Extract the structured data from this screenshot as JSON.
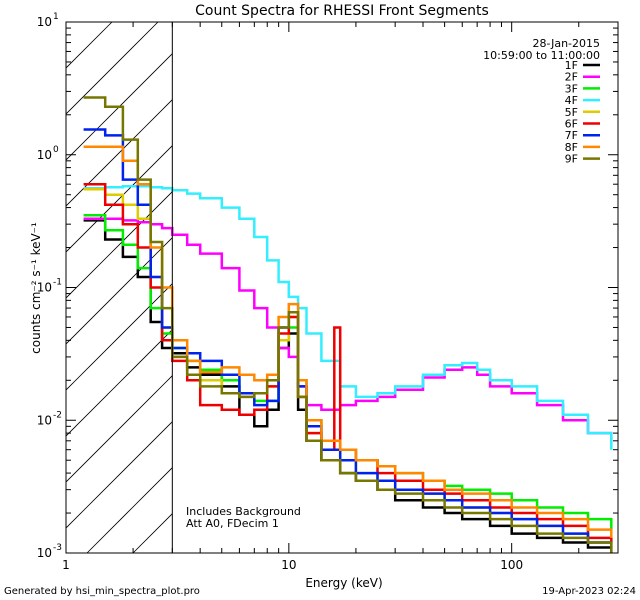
{
  "chart_data": {
    "type": "line",
    "title": "Count Spectra for RHESSI Front Segments",
    "xlabel": "Energy (keV)",
    "ylabel": "counts cm⁻² s⁻¹ keV⁻¹",
    "xscale": "log",
    "yscale": "log",
    "xlim": [
      1,
      300
    ],
    "ylim": [
      0.001,
      10
    ],
    "x_ticks": [
      {
        "value": 1,
        "label": "1"
      },
      {
        "value": 10,
        "label": "10"
      },
      {
        "value": 100,
        "label": "100"
      }
    ],
    "y_ticks": [
      {
        "value": 0.001,
        "base": "10",
        "exp": "-3"
      },
      {
        "value": 0.01,
        "base": "10",
        "exp": "-2"
      },
      {
        "value": 0.1,
        "base": "10",
        "exp": "-1"
      },
      {
        "value": 1,
        "base": "10",
        "exp": "0"
      },
      {
        "value": 10,
        "base": "10",
        "exp": "1"
      }
    ],
    "date": "28-Jan-2015",
    "time_range": "10:59:00 to 11:00:00",
    "hatched_region_keV": [
      1,
      3
    ],
    "annotations": [
      "Includes Background",
      "Att A0, FDecim 1"
    ],
    "series": [
      {
        "name": "1F",
        "color": "#000000",
        "points": [
          [
            1.2,
            0.32
          ],
          [
            1.5,
            0.23
          ],
          [
            1.8,
            0.17
          ],
          [
            2.1,
            0.12
          ],
          [
            2.4,
            0.055
          ],
          [
            2.7,
            0.035
          ],
          [
            3,
            0.032
          ],
          [
            3.5,
            0.025
          ],
          [
            4,
            0.022
          ],
          [
            5,
            0.018
          ],
          [
            6,
            0.011
          ],
          [
            7,
            0.009
          ],
          [
            8,
            0.012
          ],
          [
            9,
            0.035
          ],
          [
            10,
            0.045
          ],
          [
            11,
            0.012
          ],
          [
            12,
            0.007
          ],
          [
            14,
            0.005
          ],
          [
            17,
            0.004
          ],
          [
            20,
            0.0035
          ],
          [
            25,
            0.003
          ],
          [
            30,
            0.0025
          ],
          [
            40,
            0.0022
          ],
          [
            50,
            0.002
          ],
          [
            60,
            0.0018
          ],
          [
            80,
            0.0016
          ],
          [
            100,
            0.0014
          ],
          [
            130,
            0.0013
          ],
          [
            170,
            0.0012
          ],
          [
            220,
            0.0011
          ],
          [
            280,
            0.001
          ]
        ]
      },
      {
        "name": "2F",
        "color": "#ff00ff",
        "points": [
          [
            1.2,
            0.33
          ],
          [
            1.5,
            0.33
          ],
          [
            1.8,
            0.32
          ],
          [
            2.1,
            0.31
          ],
          [
            2.4,
            0.3
          ],
          [
            2.7,
            0.28
          ],
          [
            3,
            0.25
          ],
          [
            3.5,
            0.21
          ],
          [
            4,
            0.18
          ],
          [
            5,
            0.14
          ],
          [
            6,
            0.095
          ],
          [
            7,
            0.07
          ],
          [
            8,
            0.05
          ],
          [
            9,
            0.035
          ],
          [
            10,
            0.03
          ],
          [
            11,
            0.018
          ],
          [
            12,
            0.013
          ],
          [
            14,
            0.012
          ],
          [
            17,
            0.013
          ],
          [
            20,
            0.014
          ],
          [
            25,
            0.015
          ],
          [
            30,
            0.017
          ],
          [
            40,
            0.021
          ],
          [
            50,
            0.024
          ],
          [
            60,
            0.025
          ],
          [
            70,
            0.022
          ],
          [
            80,
            0.018
          ],
          [
            100,
            0.016
          ],
          [
            130,
            0.013
          ],
          [
            170,
            0.01
          ],
          [
            220,
            0.008
          ],
          [
            280,
            0.007
          ]
        ]
      },
      {
        "name": "3F",
        "color": "#00ee00",
        "points": [
          [
            1.2,
            0.35
          ],
          [
            1.5,
            0.27
          ],
          [
            1.8,
            0.21
          ],
          [
            2.1,
            0.14
          ],
          [
            2.4,
            0.07
          ],
          [
            2.7,
            0.045
          ],
          [
            3,
            0.035
          ],
          [
            3.5,
            0.028
          ],
          [
            4,
            0.024
          ],
          [
            5,
            0.02
          ],
          [
            6,
            0.016
          ],
          [
            7,
            0.014
          ],
          [
            8,
            0.014
          ],
          [
            9,
            0.04
          ],
          [
            10,
            0.05
          ],
          [
            11,
            0.02
          ],
          [
            12,
            0.01
          ],
          [
            14,
            0.007
          ],
          [
            17,
            0.006
          ],
          [
            20,
            0.005
          ],
          [
            25,
            0.0045
          ],
          [
            30,
            0.004
          ],
          [
            40,
            0.0035
          ],
          [
            50,
            0.0032
          ],
          [
            60,
            0.003
          ],
          [
            80,
            0.0028
          ],
          [
            100,
            0.0025
          ],
          [
            130,
            0.0022
          ],
          [
            170,
            0.002
          ],
          [
            220,
            0.0018
          ],
          [
            280,
            0.0015
          ]
        ]
      },
      {
        "name": "4F",
        "color": "#33eeff",
        "points": [
          [
            1.2,
            0.56
          ],
          [
            1.5,
            0.57
          ],
          [
            1.8,
            0.58
          ],
          [
            2.1,
            0.58
          ],
          [
            2.4,
            0.57
          ],
          [
            2.7,
            0.56
          ],
          [
            3,
            0.54
          ],
          [
            3.5,
            0.51
          ],
          [
            4,
            0.47
          ],
          [
            5,
            0.4
          ],
          [
            6,
            0.33
          ],
          [
            7,
            0.24
          ],
          [
            8,
            0.16
          ],
          [
            9,
            0.11
          ],
          [
            10,
            0.085
          ],
          [
            11,
            0.07
          ],
          [
            12,
            0.045
          ],
          [
            14,
            0.028
          ],
          [
            17,
            0.018
          ],
          [
            20,
            0.015
          ],
          [
            25,
            0.016
          ],
          [
            30,
            0.018
          ],
          [
            40,
            0.022
          ],
          [
            50,
            0.026
          ],
          [
            60,
            0.027
          ],
          [
            70,
            0.024
          ],
          [
            80,
            0.02
          ],
          [
            100,
            0.018
          ],
          [
            130,
            0.014
          ],
          [
            170,
            0.011
          ],
          [
            220,
            0.008
          ],
          [
            280,
            0.006
          ]
        ]
      },
      {
        "name": "5F",
        "color": "#ddcc00",
        "points": [
          [
            1.2,
            0.55
          ],
          [
            1.5,
            0.5
          ],
          [
            1.8,
            0.42
          ],
          [
            2.1,
            0.33
          ],
          [
            2.4,
            0.12
          ],
          [
            2.7,
            0.05
          ],
          [
            3,
            0.03
          ],
          [
            3.5,
            0.022
          ],
          [
            4,
            0.02
          ],
          [
            5,
            0.016
          ],
          [
            6,
            0.015
          ],
          [
            7,
            0.016
          ],
          [
            8,
            0.018
          ],
          [
            9,
            0.04
          ],
          [
            10,
            0.06
          ],
          [
            11,
            0.015
          ],
          [
            12,
            0.008
          ],
          [
            14,
            0.006
          ],
          [
            17,
            0.005
          ],
          [
            20,
            0.004
          ],
          [
            25,
            0.0035
          ],
          [
            30,
            0.003
          ],
          [
            40,
            0.0028
          ],
          [
            50,
            0.0025
          ],
          [
            60,
            0.0022
          ],
          [
            80,
            0.002
          ],
          [
            100,
            0.0018
          ],
          [
            130,
            0.0016
          ],
          [
            170,
            0.0014
          ],
          [
            220,
            0.0012
          ],
          [
            280,
            0.0011
          ]
        ]
      },
      {
        "name": "6F",
        "color": "#ee0000",
        "points": [
          [
            1.2,
            0.6
          ],
          [
            1.5,
            0.42
          ],
          [
            1.8,
            0.3
          ],
          [
            2.1,
            0.2
          ],
          [
            2.4,
            0.1
          ],
          [
            2.7,
            0.04
          ],
          [
            3,
            0.028
          ],
          [
            3.5,
            0.02
          ],
          [
            4,
            0.013
          ],
          [
            5,
            0.012
          ],
          [
            6,
            0.011
          ],
          [
            7,
            0.012
          ],
          [
            8,
            0.018
          ],
          [
            9,
            0.045
          ],
          [
            10,
            0.06
          ],
          [
            11,
            0.015
          ],
          [
            12,
            0.008
          ],
          [
            14,
            0.006
          ],
          [
            16,
            0.05
          ],
          [
            17,
            0.006
          ],
          [
            20,
            0.005
          ],
          [
            25,
            0.004
          ],
          [
            30,
            0.0035
          ],
          [
            40,
            0.003
          ],
          [
            50,
            0.0028
          ],
          [
            60,
            0.0025
          ],
          [
            80,
            0.0022
          ],
          [
            100,
            0.002
          ],
          [
            130,
            0.0018
          ],
          [
            170,
            0.0016
          ],
          [
            220,
            0.0013
          ],
          [
            280,
            0.0012
          ]
        ]
      },
      {
        "name": "7F",
        "color": "#0022ee",
        "points": [
          [
            1.2,
            1.55
          ],
          [
            1.5,
            1.4
          ],
          [
            1.8,
            0.65
          ],
          [
            2.1,
            0.42
          ],
          [
            2.4,
            0.12
          ],
          [
            2.7,
            0.05
          ],
          [
            3,
            0.035
          ],
          [
            3.5,
            0.032
          ],
          [
            4,
            0.028
          ],
          [
            5,
            0.022
          ],
          [
            6,
            0.016
          ],
          [
            7,
            0.013
          ],
          [
            8,
            0.014
          ],
          [
            9,
            0.05
          ],
          [
            10,
            0.065
          ],
          [
            11,
            0.018
          ],
          [
            12,
            0.009
          ],
          [
            14,
            0.006
          ],
          [
            17,
            0.005
          ],
          [
            20,
            0.004
          ],
          [
            25,
            0.0035
          ],
          [
            30,
            0.003
          ],
          [
            40,
            0.0028
          ],
          [
            50,
            0.0025
          ],
          [
            60,
            0.0022
          ],
          [
            80,
            0.002
          ],
          [
            100,
            0.0018
          ],
          [
            130,
            0.0016
          ],
          [
            170,
            0.0014
          ],
          [
            220,
            0.0012
          ],
          [
            280,
            0.0011
          ]
        ]
      },
      {
        "name": "8F",
        "color": "#ff8800",
        "points": [
          [
            1.2,
            1.15
          ],
          [
            1.5,
            1.15
          ],
          [
            1.8,
            0.9
          ],
          [
            2.1,
            0.6
          ],
          [
            2.4,
            0.2
          ],
          [
            2.7,
            0.1
          ],
          [
            3,
            0.04
          ],
          [
            3.5,
            0.028
          ],
          [
            4,
            0.023
          ],
          [
            5,
            0.025
          ],
          [
            6,
            0.022
          ],
          [
            7,
            0.02
          ],
          [
            8,
            0.022
          ],
          [
            9,
            0.06
          ],
          [
            10,
            0.075
          ],
          [
            11,
            0.02
          ],
          [
            12,
            0.01
          ],
          [
            14,
            0.007
          ],
          [
            17,
            0.006
          ],
          [
            20,
            0.005
          ],
          [
            25,
            0.0045
          ],
          [
            30,
            0.004
          ],
          [
            40,
            0.0035
          ],
          [
            50,
            0.003
          ],
          [
            60,
            0.0028
          ],
          [
            80,
            0.0025
          ],
          [
            100,
            0.0022
          ],
          [
            130,
            0.002
          ],
          [
            170,
            0.0018
          ],
          [
            220,
            0.0015
          ],
          [
            280,
            0.0013
          ]
        ]
      },
      {
        "name": "9F",
        "color": "#777700",
        "points": [
          [
            1.2,
            2.7
          ],
          [
            1.5,
            2.3
          ],
          [
            1.8,
            1.3
          ],
          [
            2.1,
            0.65
          ],
          [
            2.4,
            0.22
          ],
          [
            2.7,
            0.07
          ],
          [
            3,
            0.03
          ],
          [
            3.5,
            0.022
          ],
          [
            4,
            0.018
          ],
          [
            5,
            0.016
          ],
          [
            6,
            0.015
          ],
          [
            7,
            0.016
          ],
          [
            8,
            0.02
          ],
          [
            9,
            0.05
          ],
          [
            10,
            0.065
          ],
          [
            11,
            0.015
          ],
          [
            12,
            0.007
          ],
          [
            14,
            0.005
          ],
          [
            17,
            0.004
          ],
          [
            20,
            0.0035
          ],
          [
            25,
            0.003
          ],
          [
            30,
            0.0028
          ],
          [
            40,
            0.0025
          ],
          [
            50,
            0.0022
          ],
          [
            60,
            0.002
          ],
          [
            80,
            0.0018
          ],
          [
            100,
            0.0016
          ],
          [
            130,
            0.0014
          ],
          [
            170,
            0.0013
          ],
          [
            220,
            0.0012
          ],
          [
            280,
            0.001
          ]
        ]
      }
    ]
  },
  "footer": {
    "generated_by": "Generated by hsi_min_spectra_plot.pro",
    "timestamp": "19-Apr-2023 02:24"
  }
}
